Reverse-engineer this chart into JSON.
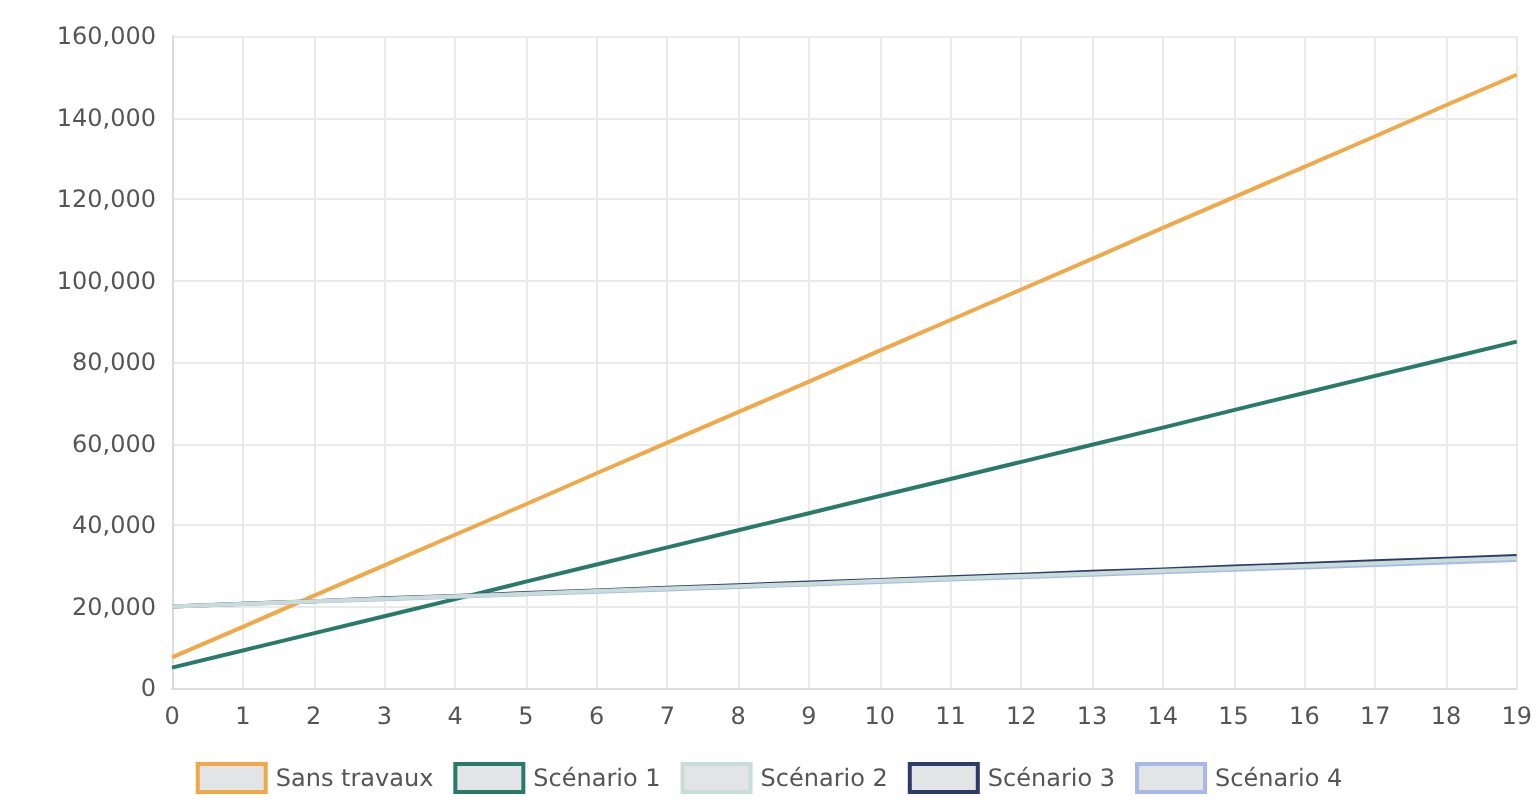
{
  "chart_data": {
    "type": "line",
    "x": [
      0,
      1,
      2,
      3,
      4,
      5,
      6,
      7,
      8,
      9,
      10,
      11,
      12,
      13,
      14,
      15,
      16,
      17,
      18,
      19
    ],
    "series": [
      {
        "name": "Sans travaux",
        "color": "#f0a848",
        "values": [
          7500,
          15000,
          22600,
          30100,
          37600,
          45100,
          52700,
          60200,
          67700,
          75200,
          82800,
          90300,
          97800,
          105300,
          112900,
          120400,
          127900,
          135400,
          143000,
          150500
        ]
      },
      {
        "name": "Scénario 1",
        "color": "#2a7a6a",
        "values": [
          5000,
          9200,
          13400,
          17600,
          21800,
          26100,
          30300,
          34500,
          38700,
          42900,
          47100,
          51300,
          55500,
          59700,
          63900,
          68200,
          72400,
          76600,
          80800,
          85000
        ]
      },
      {
        "name": "Scénario 2",
        "color": "#c8ddd8",
        "values": [
          20000,
          20600,
          21300,
          21900,
          22500,
          23100,
          23800,
          24400,
          25000,
          25600,
          26300,
          26900,
          27500,
          28100,
          28800,
          29400,
          30000,
          30600,
          31300,
          31900
        ]
      },
      {
        "name": "Scénario 3",
        "color": "#2d3a6a",
        "values": [
          20000,
          20700,
          21300,
          22000,
          22600,
          23300,
          23900,
          24600,
          25200,
          25900,
          26500,
          27200,
          27800,
          28500,
          29100,
          29800,
          30400,
          31100,
          31700,
          32400
        ]
      },
      {
        "name": "Scénario 4",
        "color": "#a8b8e8",
        "values": [
          20000,
          20600,
          21200,
          21800,
          22400,
          23000,
          23600,
          24200,
          24800,
          25400,
          26000,
          26600,
          27200,
          27800,
          28400,
          29000,
          29600,
          30200,
          30800,
          31400
        ]
      }
    ],
    "xlim": [
      0,
      19
    ],
    "xticks": [
      0,
      1,
      2,
      3,
      4,
      5,
      6,
      7,
      8,
      9,
      10,
      11,
      12,
      13,
      14,
      15,
      16,
      17,
      18,
      19
    ],
    "ylim": [
      0,
      160000
    ],
    "yticks": [
      0,
      {
        "value": 20000,
        "label": "20,000"
      },
      {
        "value": 40000,
        "label": "40,000"
      },
      {
        "value": 60000,
        "label": "60,000"
      },
      {
        "value": 80000,
        "label": "80,000"
      },
      {
        "value": 100000,
        "label": "100,000"
      },
      {
        "value": 120000,
        "label": "120,000"
      },
      {
        "value": 140000,
        "label": "140,000"
      },
      {
        "value": 160000,
        "label": "160,000"
      }
    ],
    "grid": true,
    "legend": "bottom",
    "marker": "none",
    "line_style": "solid"
  }
}
